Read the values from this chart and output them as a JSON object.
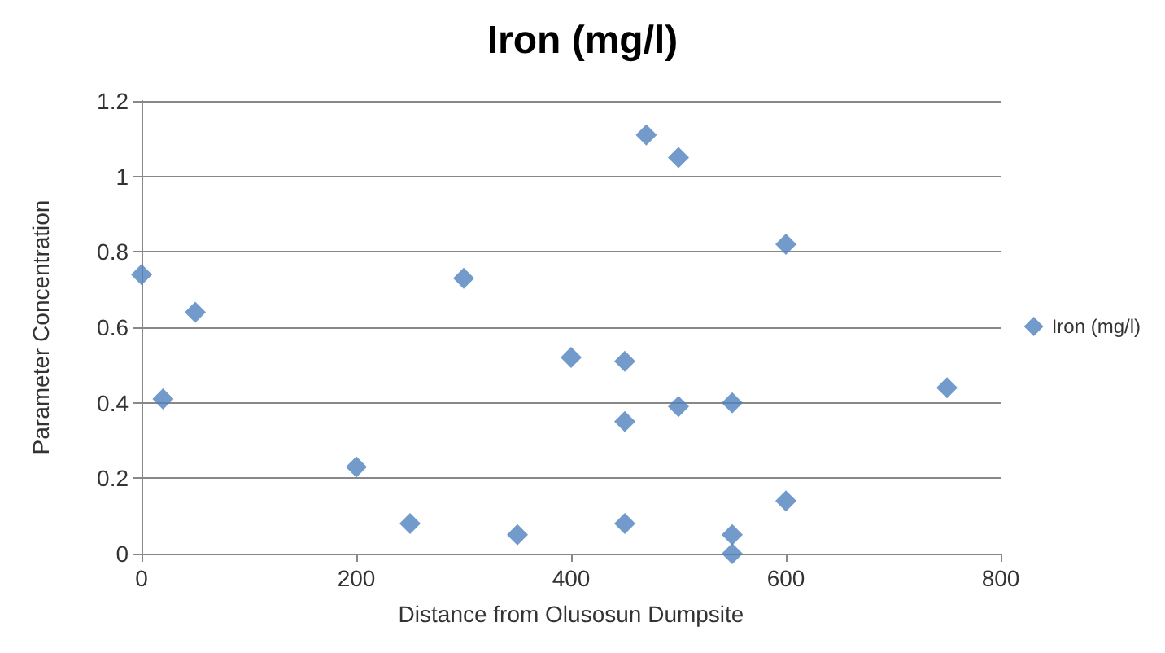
{
  "chart_data": {
    "type": "scatter",
    "title": "Iron (mg/l)",
    "xlabel": "Distance from Olusosun Dumpsite",
    "ylabel": "Parameter Concentration",
    "x": [
      0,
      20,
      50,
      200,
      250,
      300,
      350,
      400,
      450,
      450,
      450,
      470,
      500,
      500,
      550,
      550,
      550,
      600,
      600,
      750
    ],
    "series": [
      {
        "name": "Iron (mg/l)",
        "color": "#4f81bd",
        "values": [
          0.74,
          0.41,
          0.64,
          0.23,
          0.08,
          0.73,
          0.05,
          0.52,
          0.51,
          0.35,
          0.08,
          1.11,
          1.05,
          0.39,
          0.4,
          0.05,
          0.0,
          0.82,
          0.14,
          0.44
        ]
      }
    ],
    "xlim": [
      0,
      800
    ],
    "xticks": [
      0,
      200,
      400,
      600,
      800
    ],
    "ylim": [
      0,
      1.2
    ],
    "yticks": [
      0,
      0.2,
      0.4,
      0.6,
      0.8,
      1,
      1.2
    ],
    "grid": "y",
    "legend": "right",
    "marker": "diamond"
  }
}
